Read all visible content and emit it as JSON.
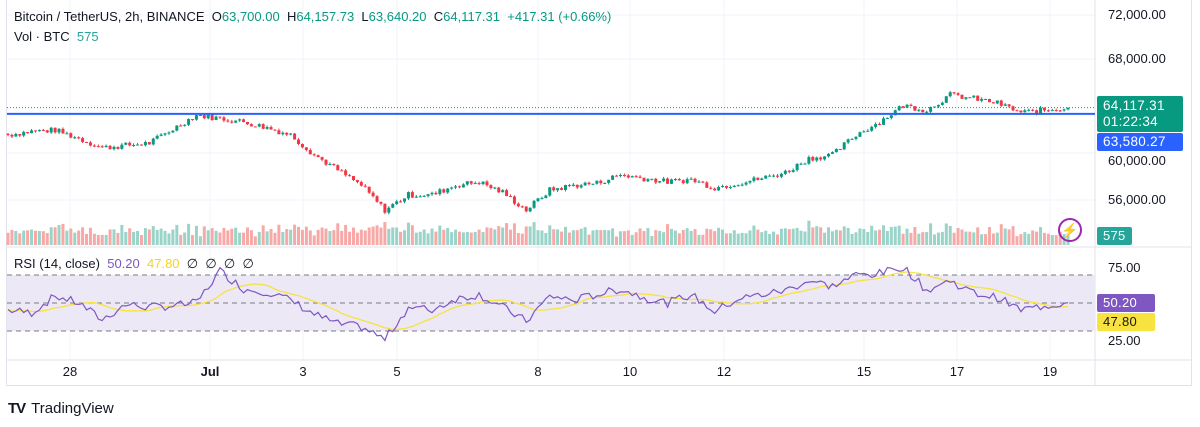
{
  "header": {
    "symbol": "Bitcoin / TetherUS, 2h, BINANCE",
    "o_label": "O",
    "open": "63,700.00",
    "h_label": "H",
    "high": "64,157.73",
    "l_label": "L",
    "low": "63,640.20",
    "c_label": "C",
    "close": "64,117.31",
    "change": "+417.31 (+0.66%)",
    "vol_label": "Vol · BTC",
    "vol": "575"
  },
  "rsi_legend": {
    "label": "RSI (14, close)",
    "rsi": "50.20",
    "ma": "47.80",
    "hidden_values": [
      "∅",
      "∅",
      "∅",
      "∅"
    ]
  },
  "price_tags": {
    "last": "64,117.31",
    "countdown": "01:22:34",
    "line": "63,580.27",
    "volume": "575",
    "rsi": "50.20",
    "rsi_ma": "47.80"
  },
  "colors": {
    "up": "#089981",
    "down": "#f23645",
    "vol_up": "#9ad3c8",
    "vol_down": "#f7a9a7",
    "hline": "#2962ff",
    "rsi": "#7e57c2",
    "rsi_ma": "#f7e23f",
    "rsi_band": "#ede8f6"
  },
  "brand": "TradingView",
  "chart_data": {
    "type": "candlestick",
    "interval": "2h",
    "price_axis": {
      "ticks": [
        "72,000.00",
        "68,000.00",
        "60,000.00",
        "56,000.00"
      ],
      "ylim": [
        53500,
        72500
      ]
    },
    "rsi_axis": {
      "ticks": [
        "75.00",
        "25.00"
      ],
      "bands": [
        70,
        50,
        30
      ]
    },
    "time_axis": {
      "labels": [
        "28",
        "Jul",
        "3",
        "5",
        "8",
        "10",
        "12",
        "15",
        "17",
        "19"
      ],
      "label_days": [
        -3,
        0,
        2,
        4,
        7,
        9,
        11,
        14,
        16,
        18
      ]
    },
    "horizontal_line": 63580.27,
    "closes_12h_from_jun26_18h": [
      61800,
      62100,
      62200,
      61500,
      60700,
      60900,
      61100,
      62300,
      63500,
      63200,
      62900,
      62400,
      61800,
      60100,
      58800,
      57500,
      55400,
      56700,
      56700,
      57500,
      57800,
      56900,
      55400,
      57100,
      57500,
      57700,
      58400,
      58100,
      57800,
      58000,
      57300,
      57700,
      58100,
      58600,
      59800,
      60100,
      61800,
      62900,
      64300,
      63900,
      65200,
      64900,
      64500,
      63700,
      63900,
      64117
    ],
    "rsi_12h": [
      45,
      43,
      55,
      50,
      38,
      49,
      47,
      48,
      50,
      73,
      60,
      58,
      52,
      42,
      35,
      33,
      24,
      47,
      45,
      53,
      56,
      47,
      37,
      55,
      52,
      56,
      60,
      54,
      50,
      56,
      44,
      53,
      56,
      59,
      66,
      62,
      70,
      71,
      76,
      59,
      66,
      57,
      54,
      45,
      48,
      50.2
    ]
  }
}
